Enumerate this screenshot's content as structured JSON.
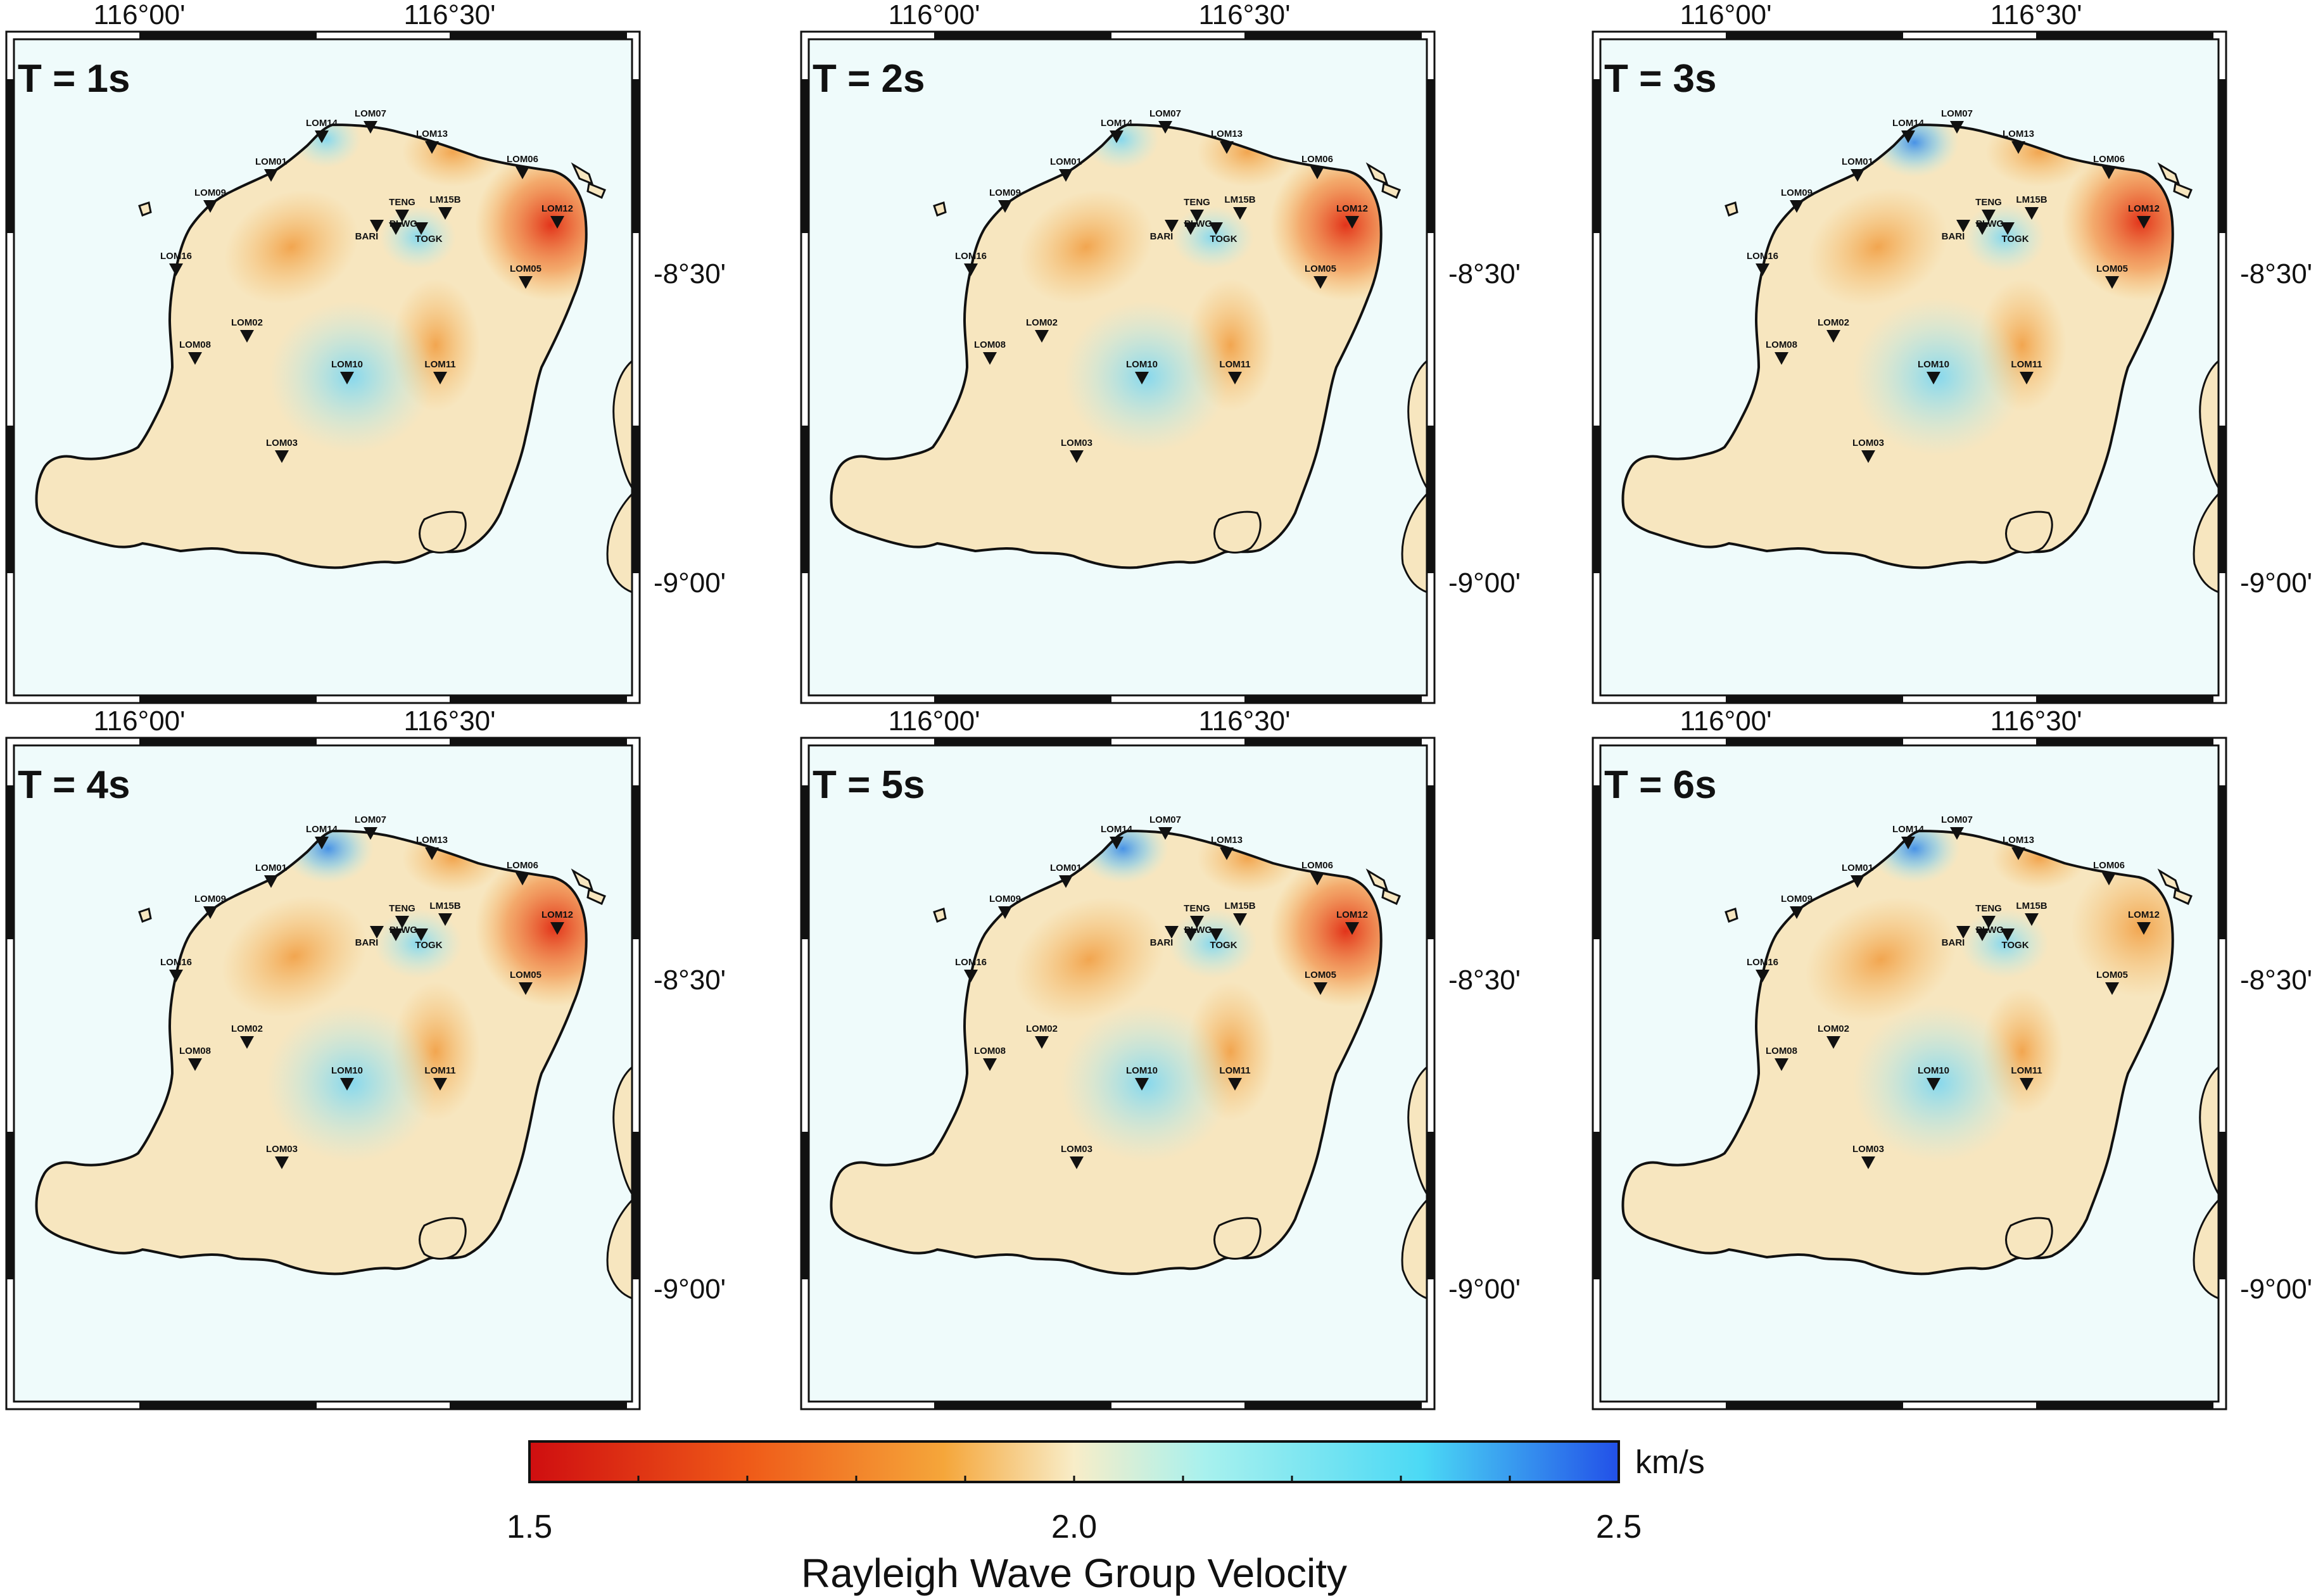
{
  "panels": [
    {
      "title": "T = 1s",
      "lon_ticks": [
        "116°00'",
        "116°30'"
      ],
      "lat_ticks": [
        "-8°30'",
        "-9°00'"
      ]
    },
    {
      "title": "T = 2s",
      "lon_ticks": [
        "116°00'",
        "116°30'"
      ],
      "lat_ticks": [
        "-8°30'",
        "-9°00'"
      ]
    },
    {
      "title": "T = 3s",
      "lon_ticks": [
        "116°00'",
        "116°30'"
      ],
      "lat_ticks": [
        "-8°30'",
        "-9°00'"
      ]
    },
    {
      "title": "T = 4s",
      "lon_ticks": [
        "116°00'",
        "116°30'"
      ],
      "lat_ticks": [
        "-8°30'",
        "-9°00'"
      ]
    },
    {
      "title": "T = 5s",
      "lon_ticks": [
        "116°00'",
        "116°30'"
      ],
      "lat_ticks": [
        "-8°30'",
        "-9°00'"
      ]
    },
    {
      "title": "T = 6s",
      "lon_ticks": [
        "116°00'",
        "116°30'"
      ],
      "lat_ticks": [
        "-8°30'",
        "-9°00'"
      ]
    }
  ],
  "stations": [
    "LOM07",
    "LOM14",
    "LOM13",
    "LOM01",
    "LOM06",
    "LOM09",
    "TENG",
    "LM15B",
    "LOM12",
    "BARI",
    "PLWG",
    "TOGK",
    "LOM16",
    "LOM05",
    "LOM02",
    "LOM08",
    "LOM10",
    "LOM11",
    "LOM03"
  ],
  "colorbar": {
    "min_label": "1.5",
    "mid_label": "2.0",
    "max_label": "2.5",
    "unit": "km/s",
    "title": "Rayleigh Wave Group Velocity",
    "min": 1.5,
    "max": 2.5
  },
  "colors": {
    "ocean": "#effbfb",
    "land": "#f7e6bf",
    "slow": "#d81c12",
    "fast": "#2258e6"
  }
}
